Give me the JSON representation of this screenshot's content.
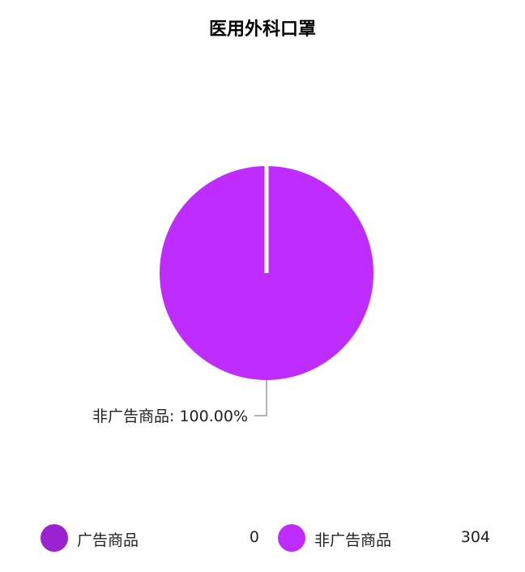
{
  "chart_data": {
    "type": "pie",
    "title": "医用外科口罩",
    "slices": [
      {
        "name": "广告商品",
        "value": 0,
        "color": "#9b22d0"
      },
      {
        "name": "非广告商品",
        "value": 304,
        "color": "#bf2cff"
      }
    ],
    "data_labels": [
      {
        "text": "非广告商品: 100.00%"
      }
    ],
    "legend_placement": "bottom",
    "legend": [
      {
        "label": "广告商品",
        "value": "0"
      },
      {
        "label": "非广告商品",
        "value": "304"
      }
    ]
  }
}
